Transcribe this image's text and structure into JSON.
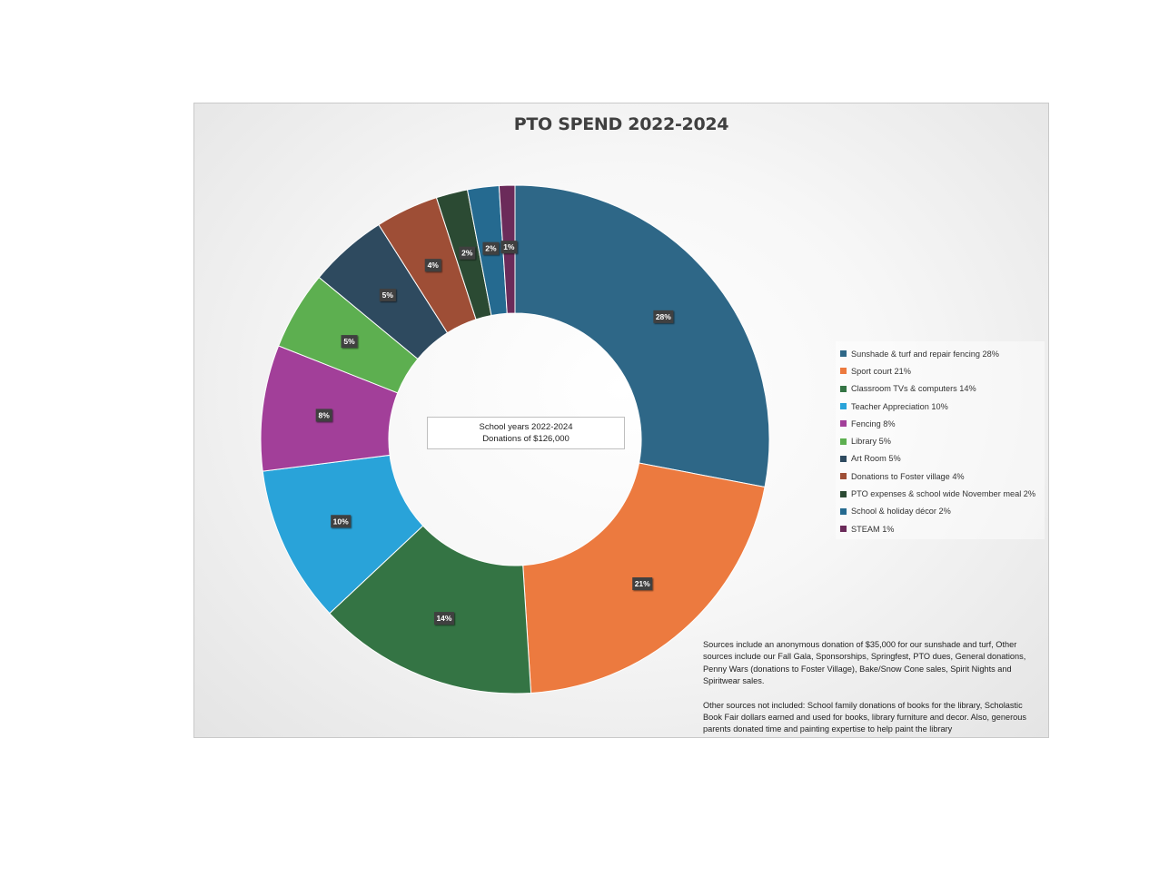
{
  "chart_data": {
    "type": "pie",
    "variant": "donut",
    "title": "PTO SPEND 2022-2024",
    "slices": [
      {
        "label": "Sunshade & turf and repair fencing 28%",
        "data_label": "28%",
        "value": 28,
        "color": "#2e6787"
      },
      {
        "label": "Sport court 21%",
        "data_label": "21%",
        "value": 21,
        "color": "#ec7a3f"
      },
      {
        "label": "Classroom TVs & computers 14%",
        "data_label": "14%",
        "value": 14,
        "color": "#347444"
      },
      {
        "label": "Teacher Appreciation 10%",
        "data_label": "10%",
        "value": 10,
        "color": "#29a3d9"
      },
      {
        "label": "Fencing 8%",
        "data_label": "8%",
        "value": 8,
        "color": "#a23f99"
      },
      {
        "label": "Library 5%",
        "data_label": "5%",
        "value": 5,
        "color": "#5daf50"
      },
      {
        "label": "Art Room 5%",
        "data_label": "5%",
        "value": 5,
        "color": "#2e4a5f"
      },
      {
        "label": "Donations to Foster village 4%",
        "data_label": "4%",
        "value": 4,
        "color": "#9e4e36"
      },
      {
        "label": "PTO expenses & school wide November meal 2%",
        "data_label": "2%",
        "value": 2,
        "color": "#2b4a33"
      },
      {
        "label": "School & holiday décor 2%",
        "data_label": "2%",
        "value": 2,
        "color": "#256a90"
      },
      {
        "label": "STEAM 1%",
        "data_label": "1%",
        "value": 1,
        "color": "#6b2b5a"
      }
    ],
    "legend_position": "right"
  },
  "center_text": {
    "line1": "School years 2022-2024",
    "line2": "Donations  of $126,000"
  },
  "notes": {
    "p1": "Sources include an anonymous donation of $35,000 for our sunshade and turf, Other sources include our Fall Gala, Sponsorships, Springfest, PTO dues, General donations, Penny Wars (donations to Foster Village), Bake/Snow Cone sales, Spirit Nights and Spiritwear sales.",
    "p2": "Other sources not included: School family donations of books for the library, Scholastic Book Fair dollars earned and used for books, library furniture and decor. Also, generous parents donated time and painting expertise to help paint the library"
  }
}
